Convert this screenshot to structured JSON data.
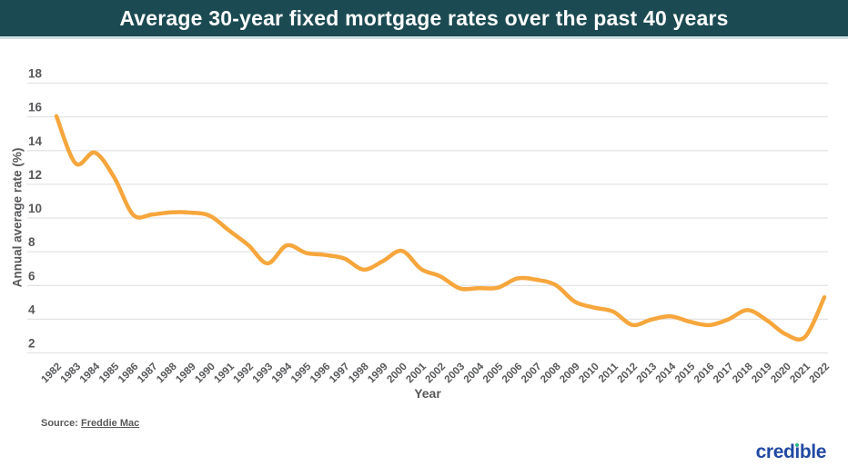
{
  "header": {
    "title": "Average 30-year fixed mortgage rates over the past 40 years"
  },
  "chart_data": {
    "type": "line",
    "title": "Average 30-year fixed mortgage rates over the past 40 years",
    "xlabel": "Year",
    "ylabel": "Annual average rate (%)",
    "ylim": [
      2,
      18
    ],
    "yticks": [
      18,
      16,
      14,
      12,
      10,
      8,
      6,
      4,
      2
    ],
    "grid": "horizontal",
    "legend": "none",
    "line_color": "#f6a63c",
    "x": [
      1982,
      1983,
      1984,
      1985,
      1986,
      1987,
      1988,
      1989,
      1990,
      1991,
      1992,
      1993,
      1994,
      1995,
      1996,
      1997,
      1998,
      1999,
      2000,
      2001,
      2002,
      2003,
      2004,
      2005,
      2006,
      2007,
      2008,
      2009,
      2010,
      2011,
      2012,
      2013,
      2014,
      2015,
      2016,
      2017,
      2018,
      2019,
      2020,
      2021,
      2022
    ],
    "values": [
      16.04,
      13.24,
      13.88,
      12.43,
      10.19,
      10.21,
      10.34,
      10.32,
      10.13,
      9.25,
      8.39,
      7.31,
      8.38,
      7.93,
      7.81,
      7.6,
      6.94,
      7.44,
      8.05,
      6.97,
      6.54,
      5.83,
      5.84,
      5.87,
      6.41,
      6.34,
      6.03,
      5.04,
      4.69,
      4.45,
      3.66,
      3.98,
      4.17,
      3.85,
      3.65,
      3.99,
      4.54,
      3.94,
      3.1,
      2.96,
      5.3
    ]
  },
  "footer": {
    "source_prefix": "Source:",
    "source_link": "Freddie Mac",
    "logo_text": "credible",
    "logo_parts": {
      "pre": "cred",
      "i": "ı",
      "post": "ble"
    }
  },
  "colors": {
    "header_bg": "#1b4a52",
    "header_text": "#ffffff",
    "line": "#f6a63c",
    "gridline": "#e4e4e4",
    "axis_text": "#57585a",
    "logo_blue": "#2149a3",
    "logo_green": "#2eb487"
  }
}
